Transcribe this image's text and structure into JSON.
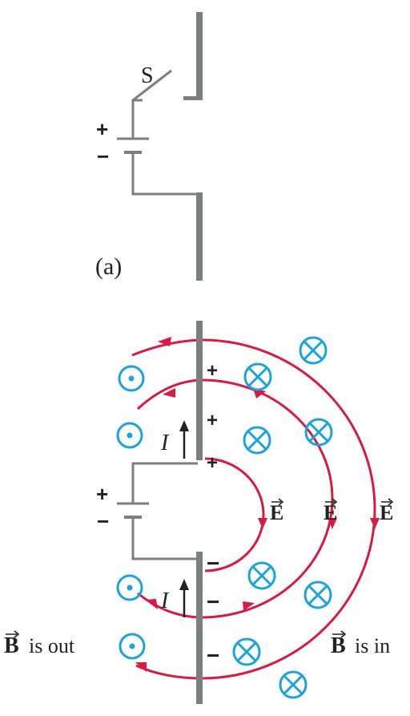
{
  "colors": {
    "wire": "#7d7e80",
    "field": "#d81b43",
    "bfield": "#1aa3dd",
    "text": "#222222"
  },
  "panel_a": {
    "switch_label": "S",
    "battery_plus": "+",
    "battery_minus": "−",
    "caption": "(a)"
  },
  "panel_b": {
    "battery_plus": "+",
    "battery_minus": "−",
    "upper_plate_charges": [
      "+",
      "+",
      "+"
    ],
    "lower_plate_charges": [
      "−",
      "−",
      "−"
    ],
    "current_label": "I",
    "e_field_label": "E",
    "b_field_label": "B",
    "b_out_text": "is out",
    "b_in_text": "is in",
    "b_out_symbol": "dot-in-circle-icon",
    "b_in_symbol": "cross-in-circle-icon"
  }
}
